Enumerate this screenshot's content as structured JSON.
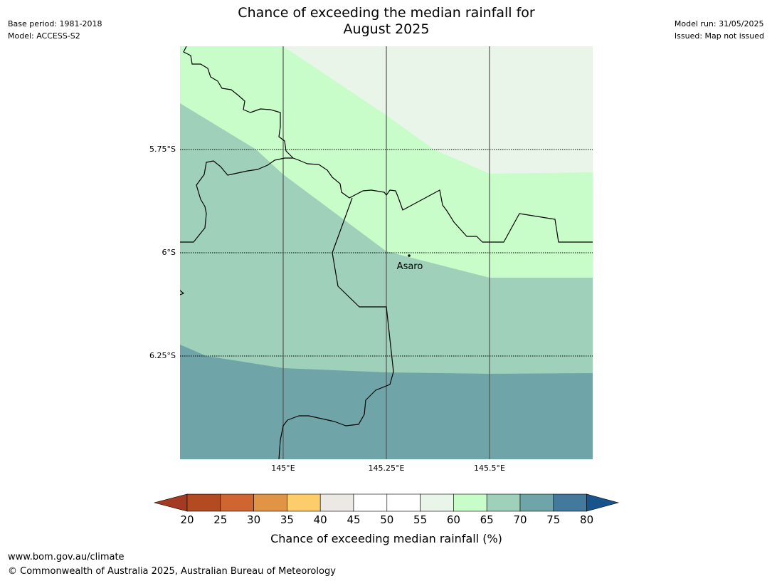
{
  "header": {
    "base_period": "Base period: 1981-2018",
    "model": "Model: ACCESS-S2",
    "model_run": "Model run: 31/05/2025",
    "issued": "Issued: Map not issued",
    "title_line1": "Chance of exceeding the median rainfall for",
    "title_line2": "August 2025"
  },
  "map": {
    "lat_labels": [
      "5.75°S",
      "6°S",
      "6.25°S"
    ],
    "lon_labels": [
      "145°E",
      "145.25°E",
      "145.5°E"
    ],
    "place": "Asaro",
    "region_colors": {
      "55-60": "#e8f5e8",
      "60-65": "#c8fcc8",
      "65-70": "#9ed0ba",
      "70-75": "#6fa5a8"
    }
  },
  "colorbar": {
    "ticks": [
      "20",
      "25",
      "30",
      "35",
      "40",
      "45",
      "50",
      "55",
      "60",
      "65",
      "70",
      "75",
      "80"
    ],
    "colors": [
      "#a33b23",
      "#b24a22",
      "#cf6530",
      "#e29446",
      "#fdcd69",
      "#ece8e4",
      "#ffffff",
      "#ffffff",
      "#e8f5e8",
      "#c8fcc8",
      "#9ed0ba",
      "#6fa5a8",
      "#42799c",
      "#18548b"
    ],
    "label": "Chance of exceeding median rainfall (%)"
  },
  "footer": {
    "url": "www.bom.gov.au/climate",
    "copyright": "© Commonwealth of Australia 2025, Australian Bureau of Meteorology"
  }
}
